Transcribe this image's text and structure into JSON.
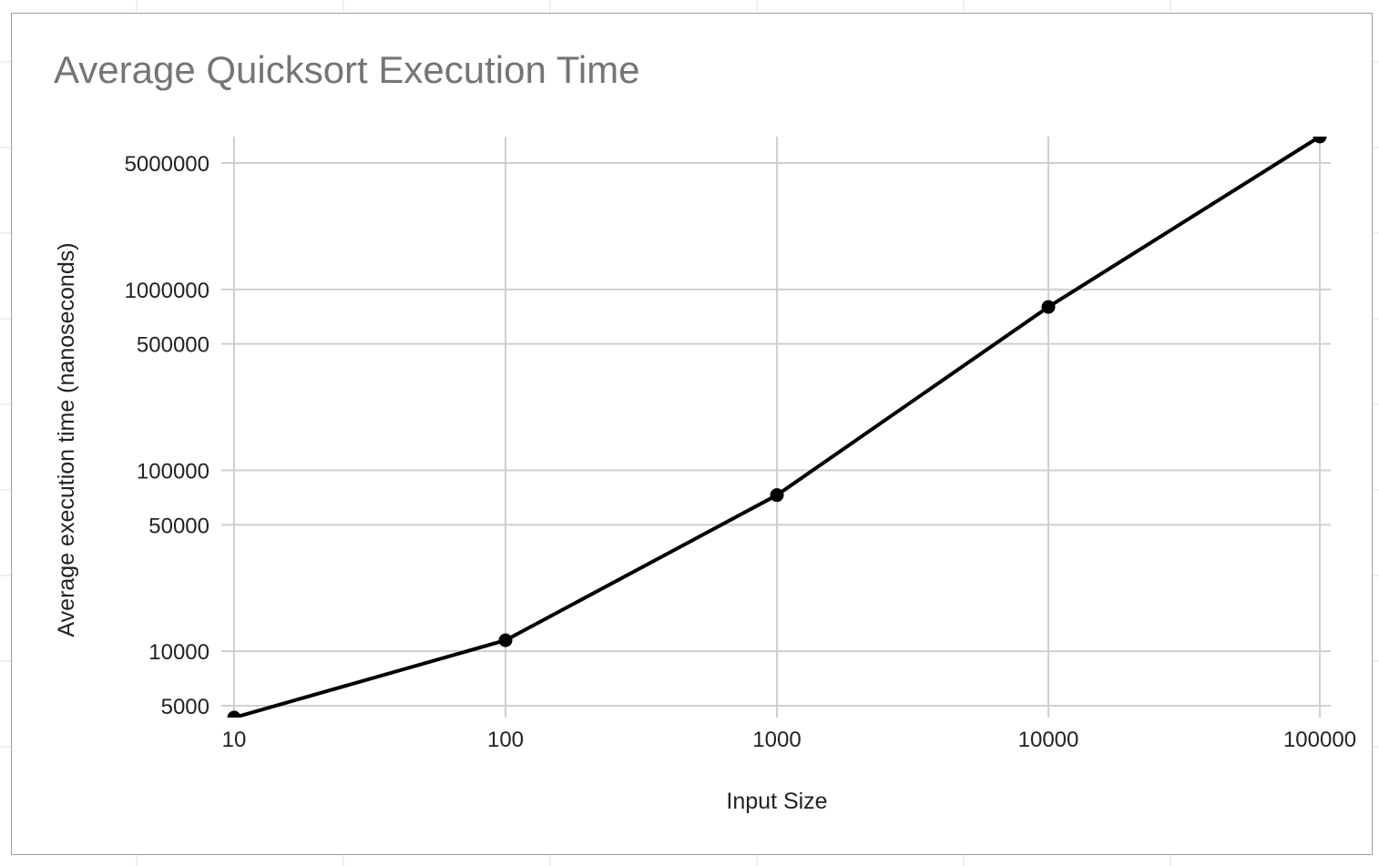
{
  "chart_data": {
    "type": "line",
    "title": "Average Quicksort Execution Time",
    "xlabel": "Input Size",
    "ylabel": "Average execution time (nanoseconds)",
    "x_scale": "log",
    "y_scale": "log",
    "x": [
      10,
      100,
      1000,
      10000,
      100000
    ],
    "series": [
      {
        "values": [
          4300,
          11500,
          73000,
          800000,
          7000000
        ],
        "color": "#000000"
      }
    ],
    "x_ticks": [
      "10",
      "100",
      "1000",
      "10000",
      "100000"
    ],
    "y_ticks": [
      "5000",
      "10000",
      "50000",
      "100000",
      "500000",
      "1000000",
      "5000000"
    ],
    "xlim": [
      10,
      100000
    ],
    "ylim": [
      4300,
      7000000
    ],
    "grid": true,
    "legend": "none",
    "colors": {
      "line": "#000000",
      "grid": "#d0d0d0",
      "title": "#757575",
      "frame": "#9e9e9e"
    }
  }
}
